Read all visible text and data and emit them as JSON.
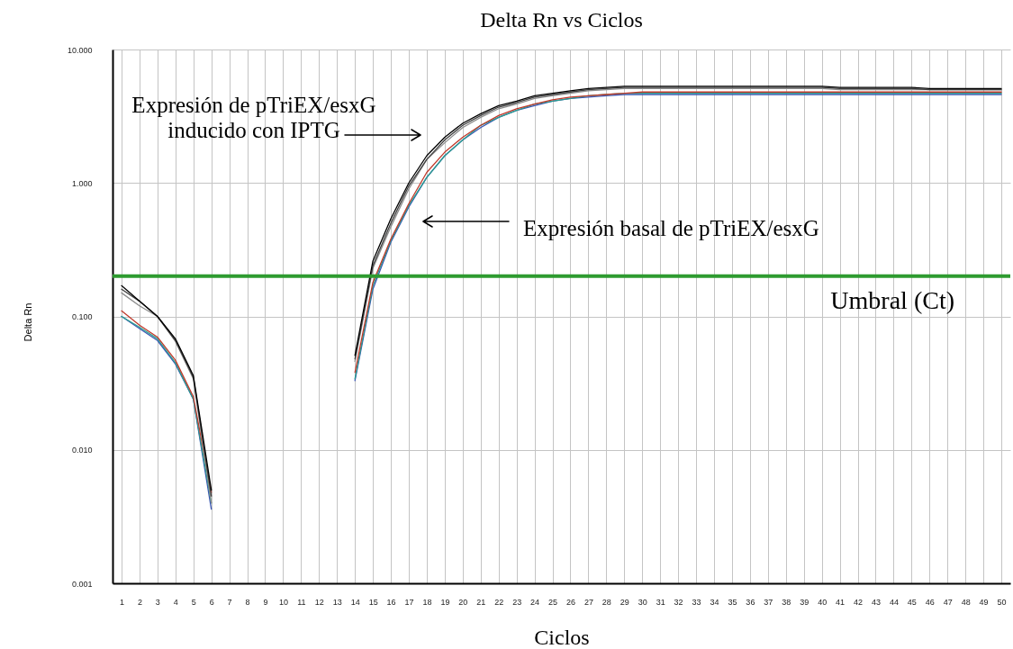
{
  "chart_data": {
    "type": "line",
    "title": "Delta Rn vs Ciclos",
    "xlabel": "Ciclos",
    "ylabel": "Delta Rn",
    "x": [
      1,
      2,
      3,
      4,
      5,
      6,
      7,
      8,
      9,
      10,
      11,
      12,
      13,
      14,
      15,
      16,
      17,
      18,
      19,
      20,
      21,
      22,
      23,
      24,
      25,
      26,
      27,
      28,
      29,
      30,
      31,
      32,
      33,
      34,
      35,
      36,
      37,
      38,
      39,
      40,
      41,
      42,
      43,
      44,
      45,
      46,
      47,
      48,
      49,
      50
    ],
    "xlim": [
      0.5,
      50.5
    ],
    "xticks": [
      1,
      2,
      3,
      4,
      5,
      6,
      7,
      8,
      9,
      10,
      11,
      12,
      13,
      14,
      15,
      16,
      17,
      18,
      19,
      20,
      21,
      22,
      23,
      24,
      25,
      26,
      27,
      28,
      29,
      30,
      31,
      32,
      33,
      34,
      35,
      36,
      37,
      38,
      39,
      40,
      41,
      42,
      43,
      44,
      45,
      46,
      47,
      48,
      49,
      50
    ],
    "ylim": [
      0.001,
      10
    ],
    "yticks": [
      0.001,
      {
        "value": 0.01,
        "label": "0.010"
      },
      {
        "value": 0.1,
        "label": "0.100"
      },
      {
        "value": 1,
        "label": "1.000"
      },
      {
        "value": 10,
        "label": "10.000"
      }
    ],
    "log": "y",
    "grid": true,
    "series": [
      {
        "color": "#3a55b4",
        "values": [
          0.1,
          0.081,
          0.066,
          0.044,
          0.024,
          0.0036,
          null,
          null,
          null,
          null,
          null,
          null,
          null,
          0.033,
          0.16,
          0.36,
          0.66,
          1.1,
          1.6,
          2.1,
          2.6,
          3.1,
          3.5,
          3.8,
          4.1,
          4.3,
          4.4,
          4.5,
          4.6,
          4.6,
          4.6,
          4.6,
          4.6,
          4.6,
          4.6,
          4.6,
          4.6,
          4.6,
          4.6,
          4.6,
          4.6,
          4.6,
          4.6,
          4.6,
          4.6,
          4.6,
          4.6,
          4.6,
          4.6,
          4.6
        ]
      },
      {
        "color": "#2a9d8f",
        "values": [
          0.1,
          0.083,
          0.068,
          0.045,
          0.024,
          0.004,
          null,
          null,
          null,
          null,
          null,
          null,
          null,
          0.034,
          0.17,
          0.37,
          0.68,
          1.1,
          1.6,
          2.1,
          2.7,
          3.1,
          3.5,
          3.9,
          4.1,
          4.3,
          4.5,
          4.6,
          4.7,
          4.7,
          4.7,
          4.7,
          4.7,
          4.7,
          4.7,
          4.7,
          4.7,
          4.7,
          4.7,
          4.7,
          4.7,
          4.7,
          4.7,
          4.7,
          4.7,
          4.7,
          4.7,
          4.7,
          4.7,
          4.7
        ]
      },
      {
        "color": "#c0392b",
        "values": [
          0.11,
          0.086,
          0.07,
          0.047,
          0.025,
          0.0048,
          null,
          null,
          null,
          null,
          null,
          null,
          null,
          0.038,
          0.18,
          0.38,
          0.7,
          1.2,
          1.7,
          2.2,
          2.7,
          3.2,
          3.6,
          3.9,
          4.2,
          4.4,
          4.5,
          4.6,
          4.7,
          4.8,
          4.8,
          4.8,
          4.8,
          4.8,
          4.8,
          4.8,
          4.8,
          4.8,
          4.8,
          4.8,
          4.8,
          4.8,
          4.8,
          4.8,
          4.8,
          4.8,
          4.8,
          4.8,
          4.8,
          4.8
        ]
      },
      {
        "color": "#8c8c8c",
        "values": [
          0.15,
          0.12,
          0.1,
          0.065,
          0.034,
          0.004,
          null,
          null,
          null,
          null,
          null,
          null,
          null,
          0.046,
          0.23,
          0.47,
          0.9,
          1.5,
          2.0,
          2.6,
          3.1,
          3.6,
          3.9,
          4.3,
          4.5,
          4.7,
          4.9,
          5.0,
          5.1,
          5.1,
          5.1,
          5.1,
          5.1,
          5.1,
          5.1,
          5.1,
          5.1,
          5.1,
          5.1,
          5.1,
          5.0,
          5.0,
          5.0,
          5.0,
          5.0,
          5.0,
          5.0,
          5.0,
          5.0,
          5.0
        ]
      },
      {
        "color": "#404040",
        "values": [
          0.16,
          0.13,
          0.1,
          0.066,
          0.035,
          0.0045,
          null,
          null,
          null,
          null,
          null,
          null,
          null,
          0.048,
          0.24,
          0.5,
          0.95,
          1.5,
          2.1,
          2.7,
          3.2,
          3.7,
          4.0,
          4.4,
          4.6,
          4.8,
          5.0,
          5.1,
          5.2,
          5.2,
          5.2,
          5.2,
          5.2,
          5.2,
          5.2,
          5.2,
          5.2,
          5.2,
          5.2,
          5.2,
          5.1,
          5.1,
          5.1,
          5.1,
          5.1,
          5.0,
          5.0,
          5.0,
          5.0,
          5.0
        ]
      },
      {
        "color": "#000000",
        "values": [
          0.17,
          0.13,
          0.1,
          0.068,
          0.036,
          0.005,
          null,
          null,
          null,
          null,
          null,
          null,
          null,
          0.051,
          0.26,
          0.54,
          1.0,
          1.6,
          2.2,
          2.8,
          3.3,
          3.8,
          4.1,
          4.5,
          4.7,
          4.9,
          5.1,
          5.2,
          5.3,
          5.3,
          5.3,
          5.3,
          5.3,
          5.3,
          5.3,
          5.3,
          5.3,
          5.3,
          5.3,
          5.3,
          5.2,
          5.2,
          5.2,
          5.2,
          5.2,
          5.1,
          5.1,
          5.1,
          5.1,
          5.1
        ]
      }
    ],
    "ref_lines": [
      {
        "axis": "y",
        "value": 0.2,
        "label": "Umbral (Ct)",
        "color": "#2e9b30"
      }
    ],
    "annotations": [
      "Expresión de pTriEX/esxG\ninducido con IPTG",
      "Expresión basal de pTriEX/esxG"
    ]
  }
}
